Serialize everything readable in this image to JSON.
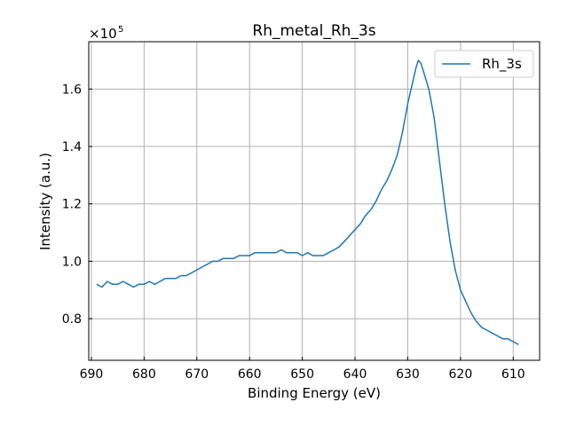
{
  "chart_data": {
    "type": "line",
    "title": "Rh_metal_Rh_3s",
    "xlabel": "Binding Energy (eV)",
    "ylabel": "Intensity (a.u.)",
    "y_scale_label": "×10",
    "y_scale_exponent": "5",
    "xlim": [
      690.5,
      605.0
    ],
    "ylim": [
      0.655,
      1.765
    ],
    "x_reversed": true,
    "grid": true,
    "legend_position": "top-right",
    "x_ticks": [
      690,
      680,
      670,
      660,
      650,
      640,
      630,
      620,
      610
    ],
    "x_tick_labels": [
      "690",
      "680",
      "670",
      "660",
      "650",
      "640",
      "630",
      "620",
      "610"
    ],
    "y_ticks": [
      0.8,
      1.0,
      1.2,
      1.4,
      1.6
    ],
    "y_tick_labels": [
      "0.8",
      "1.0",
      "1.2",
      "1.4",
      "1.6"
    ],
    "series": [
      {
        "name": "Rh_3s",
        "color": "#1f77b4",
        "x": [
          689,
          688,
          687,
          686,
          685,
          684,
          683,
          682,
          681,
          680,
          679,
          678,
          677,
          676,
          675,
          674,
          673,
          672,
          671,
          670,
          669,
          668,
          667,
          666,
          665,
          664,
          663,
          662,
          661,
          660,
          659,
          658,
          657,
          656,
          655,
          654,
          653,
          652,
          651,
          650,
          649,
          648,
          647,
          646,
          645,
          644,
          643,
          642,
          641,
          640,
          639,
          638,
          637,
          636,
          635,
          634,
          633,
          632,
          631,
          630,
          629,
          628.5,
          628,
          627.5,
          627,
          626,
          625,
          624,
          623,
          622,
          621,
          620,
          619,
          618,
          617,
          616,
          615,
          614,
          613,
          612,
          611,
          610,
          609
        ],
        "values": [
          0.92,
          0.91,
          0.93,
          0.92,
          0.92,
          0.93,
          0.92,
          0.91,
          0.92,
          0.92,
          0.93,
          0.92,
          0.93,
          0.94,
          0.94,
          0.94,
          0.95,
          0.95,
          0.96,
          0.97,
          0.98,
          0.99,
          1.0,
          1.0,
          1.01,
          1.01,
          1.01,
          1.02,
          1.02,
          1.02,
          1.03,
          1.03,
          1.03,
          1.03,
          1.03,
          1.04,
          1.03,
          1.03,
          1.03,
          1.02,
          1.03,
          1.02,
          1.02,
          1.02,
          1.03,
          1.04,
          1.05,
          1.07,
          1.09,
          1.11,
          1.13,
          1.16,
          1.18,
          1.21,
          1.25,
          1.28,
          1.32,
          1.37,
          1.45,
          1.55,
          1.63,
          1.67,
          1.7,
          1.69,
          1.66,
          1.6,
          1.5,
          1.35,
          1.2,
          1.07,
          0.97,
          0.9,
          0.86,
          0.82,
          0.79,
          0.77,
          0.76,
          0.75,
          0.74,
          0.73,
          0.73,
          0.72,
          0.71
        ]
      }
    ]
  }
}
